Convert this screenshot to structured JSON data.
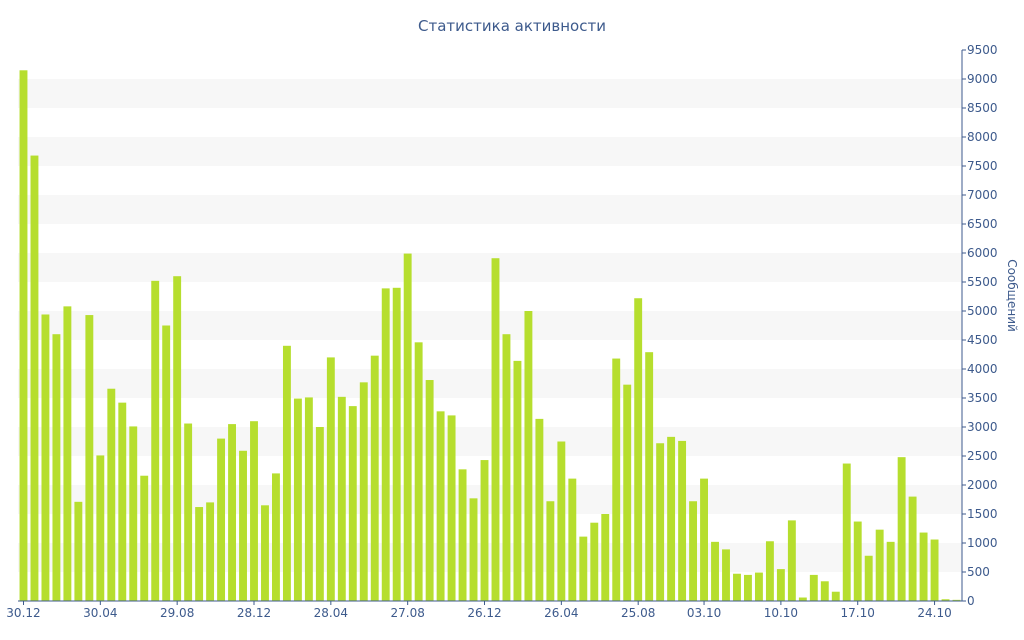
{
  "chart_data": {
    "type": "bar",
    "title": "Статистика активности",
    "xlabel": "",
    "ylabel": "Сообщений",
    "y_axis_side": "right",
    "ylim": [
      0,
      9500
    ],
    "y_ticks": [
      0,
      500,
      1000,
      1500,
      2000,
      2500,
      3000,
      3500,
      4000,
      4500,
      5000,
      5500,
      6000,
      6500,
      7000,
      7500,
      8000,
      8500,
      9000,
      9500
    ],
    "grid": "alternating horizontal bands",
    "x_tick_labels": [
      {
        "index": 0,
        "label": "30.12"
      },
      {
        "index": 7,
        "label": "30.04"
      },
      {
        "index": 14,
        "label": "29.08"
      },
      {
        "index": 21,
        "label": "28.12"
      },
      {
        "index": 28,
        "label": "28.04"
      },
      {
        "index": 35,
        "label": "27.08"
      },
      {
        "index": 42,
        "label": "26.12"
      },
      {
        "index": 49,
        "label": "26.04"
      },
      {
        "index": 56,
        "label": "25.08"
      },
      {
        "index": 62,
        "label": "03.10"
      },
      {
        "index": 69,
        "label": "10.10"
      },
      {
        "index": 76,
        "label": "17.10"
      },
      {
        "index": 83,
        "label": "24.10"
      }
    ],
    "values": [
      9150,
      7680,
      4940,
      4600,
      5080,
      1710,
      4930,
      2510,
      3660,
      3420,
      3010,
      2160,
      5520,
      4750,
      5600,
      3060,
      1620,
      1700,
      2800,
      3050,
      2590,
      3100,
      1650,
      2200,
      4400,
      3490,
      3510,
      3000,
      4200,
      3520,
      3360,
      3770,
      4230,
      5390,
      5400,
      5990,
      4460,
      3810,
      3270,
      3200,
      2270,
      1770,
      2430,
      5910,
      4600,
      4140,
      5000,
      3140,
      1720,
      2750,
      2110,
      1110,
      1350,
      1500,
      4180,
      3730,
      5220,
      4290,
      2720,
      2830,
      2760,
      1720,
      2110,
      1020,
      890,
      470,
      450,
      490,
      1030,
      550,
      1390,
      60,
      450,
      340,
      160,
      2370,
      1370,
      780,
      1230,
      1020,
      2480,
      1800,
      1180,
      1060,
      30,
      20
    ],
    "colors": {
      "bar": "#b6de2e",
      "text": "#3d5a8c",
      "band": "#f7f7f7",
      "axis": "#3d5a8c"
    }
  }
}
